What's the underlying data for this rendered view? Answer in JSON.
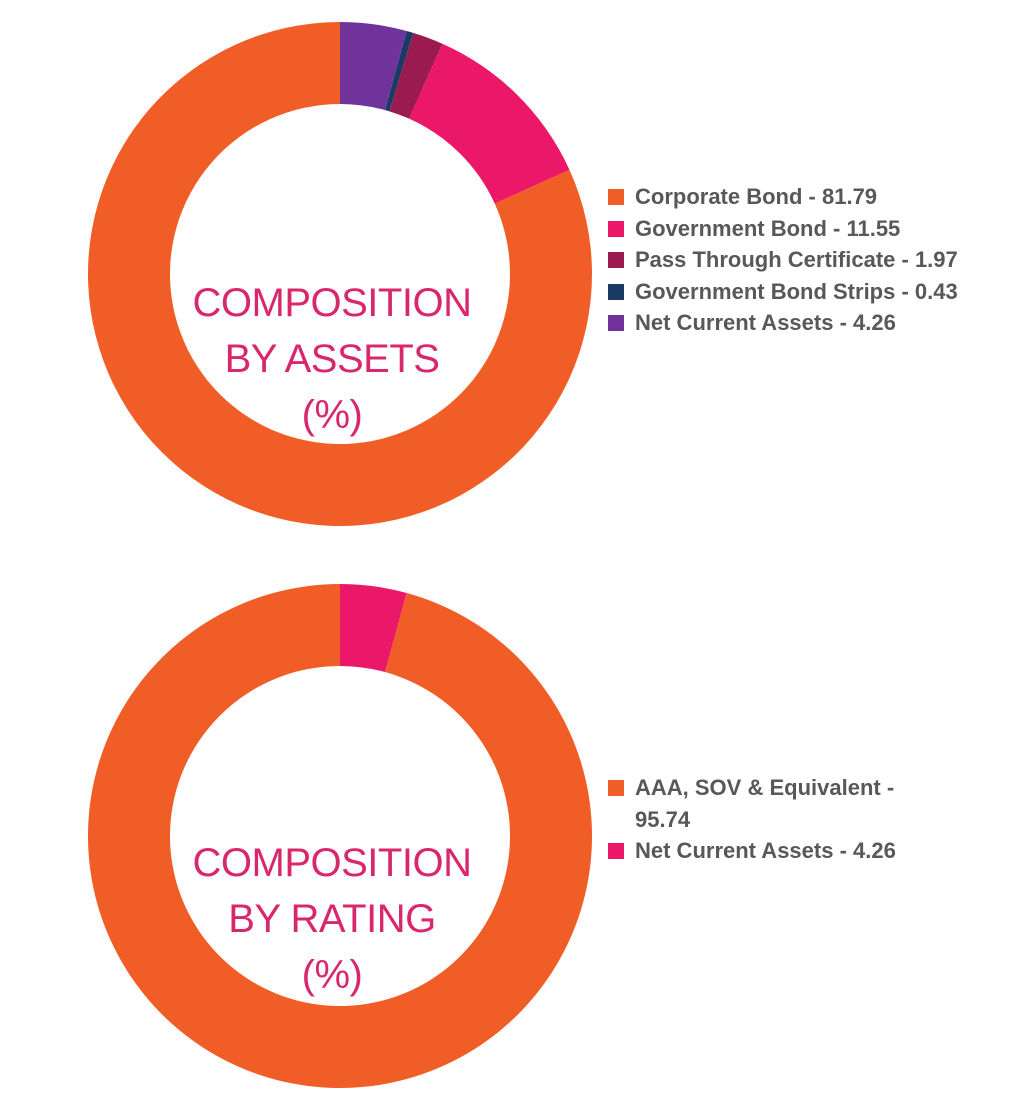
{
  "chart_data": [
    {
      "type": "pie",
      "donut": true,
      "title_lines": [
        "COMPOSITION",
        "BY ASSETS",
        "(%)"
      ],
      "slices": [
        {
          "label": "Corporate Bond - 81.79",
          "value": 81.79,
          "color": "#f15d26"
        },
        {
          "label": "Government Bond - 11.55",
          "value": 11.55,
          "color": "#eb1869"
        },
        {
          "label": "Pass Through Certificate - 1.97",
          "value": 1.97,
          "color": "#9b1b50"
        },
        {
          "label": "Government Bond Strips - 0.43",
          "value": 0.43,
          "color": "#1b3b67"
        },
        {
          "label": "Net Current Assets - 4.26",
          "value": 4.26,
          "color": "#70339b"
        }
      ],
      "legend_position": "right"
    },
    {
      "type": "pie",
      "donut": true,
      "title_lines": [
        "COMPOSITION",
        "BY RATING",
        "(%)"
      ],
      "slices": [
        {
          "label": "AAA, SOV & Equivalent - 95.74",
          "value": 95.74,
          "color": "#f15d26"
        },
        {
          "label": "Net Current Assets - 4.26",
          "value": 4.26,
          "color": "#eb1869"
        }
      ],
      "legend_position": "right"
    }
  ]
}
